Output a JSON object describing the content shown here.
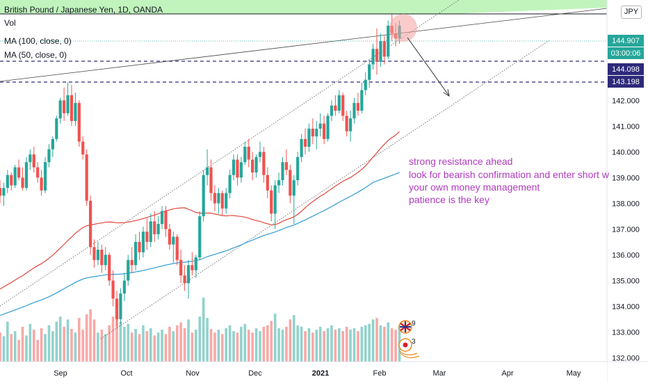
{
  "header": {
    "title": "British Pound / Japanese Yen, 1D, OANDA",
    "indicators": [
      "Vol",
      "MA (100, close, 0)",
      "MA (50, close, 0)"
    ],
    "currency": "JPY"
  },
  "annotation": {
    "lines": [
      "strong resistance ahead",
      "look for bearish confirmation and enter short w",
      "your own money management",
      "patience is the key"
    ],
    "color": "#b03bbf"
  },
  "price_tags": {
    "last": "144.907",
    "countdown": "03:00:06",
    "level1": "144.098",
    "level2": "143.198"
  },
  "event_labels": [
    "9",
    "3"
  ],
  "colors": {
    "up": "#26a69a",
    "down": "#ef5350",
    "ma50": "#e0463c",
    "ma100": "#2e9bd6",
    "level": "#2e2a7a",
    "zone": "#b6f2b0",
    "annotation": "#b03bbf"
  },
  "chart_data": {
    "type": "candlestick",
    "title": "British Pound / Japanese Yen, 1D, OANDA",
    "x_tick_labels": [
      "Sep",
      "Oct",
      "Nov",
      "Dec",
      "2021",
      "Feb",
      "Mar",
      "Apr",
      "May"
    ],
    "y_tick_labels": [
      "132.000",
      "133.000",
      "134.000",
      "135.000",
      "136.000",
      "137.000",
      "138.000",
      "139.000",
      "140.000",
      "141.000",
      "142.000"
    ],
    "ylim": [
      131.85,
      145.9
    ],
    "horizontal_levels": [
      144.098,
      143.198
    ],
    "resistance_zone_from": 145.9,
    "last_price": 144.907,
    "ma50_label": "MA (50, close, 0)",
    "ma100_label": "MA (100, close, 0)",
    "grid": false,
    "candles": [
      [
        138.6,
        138.9,
        138.0,
        138.3
      ],
      [
        138.3,
        138.8,
        137.9,
        138.6
      ],
      [
        138.6,
        139.3,
        138.4,
        139.1
      ],
      [
        139.1,
        139.2,
        138.5,
        138.7
      ],
      [
        138.7,
        139.5,
        138.6,
        139.4
      ],
      [
        139.4,
        139.7,
        138.9,
        139.0
      ],
      [
        139.0,
        139.4,
        138.5,
        138.6
      ],
      [
        138.6,
        139.8,
        138.5,
        139.6
      ],
      [
        139.6,
        140.1,
        139.3,
        139.9
      ],
      [
        139.9,
        140.2,
        139.2,
        139.4
      ],
      [
        139.4,
        139.6,
        138.8,
        139.0
      ],
      [
        139.0,
        139.3,
        138.3,
        138.5
      ],
      [
        138.5,
        139.8,
        138.4,
        139.6
      ],
      [
        139.6,
        140.3,
        139.4,
        140.1
      ],
      [
        140.1,
        140.6,
        139.8,
        140.5
      ],
      [
        140.5,
        141.4,
        140.4,
        141.3
      ],
      [
        141.3,
        142.1,
        141.1,
        142.0
      ],
      [
        142.0,
        142.5,
        141.2,
        141.5
      ],
      [
        141.5,
        142.7,
        141.4,
        142.2
      ],
      [
        142.2,
        142.6,
        141.0,
        141.2
      ],
      [
        141.2,
        142.3,
        141.0,
        141.9
      ],
      [
        141.9,
        142.0,
        140.2,
        140.4
      ],
      [
        140.4,
        140.6,
        139.7,
        139.9
      ],
      [
        139.9,
        140.1,
        137.9,
        138.1
      ],
      [
        138.1,
        138.3,
        136.0,
        136.3
      ],
      [
        136.3,
        136.6,
        135.5,
        135.8
      ],
      [
        135.8,
        136.5,
        135.6,
        136.2
      ],
      [
        136.2,
        136.4,
        135.3,
        135.6
      ],
      [
        135.6,
        136.3,
        135.4,
        136.0
      ],
      [
        136.0,
        136.1,
        134.8,
        135.0
      ],
      [
        135.0,
        135.4,
        134.0,
        134.3
      ],
      [
        134.3,
        134.6,
        133.2,
        133.5
      ],
      [
        133.5,
        134.7,
        133.3,
        134.5
      ],
      [
        134.5,
        135.3,
        134.2,
        135.0
      ],
      [
        135.0,
        136.0,
        134.8,
        135.8
      ],
      [
        135.8,
        136.3,
        135.3,
        135.6
      ],
      [
        135.6,
        136.8,
        135.4,
        136.5
      ],
      [
        136.5,
        136.9,
        135.8,
        136.1
      ],
      [
        136.1,
        137.1,
        135.9,
        136.9
      ],
      [
        136.9,
        137.4,
        136.2,
        136.5
      ],
      [
        136.5,
        137.6,
        136.3,
        137.3
      ],
      [
        137.3,
        137.7,
        136.5,
        136.8
      ],
      [
        136.8,
        137.5,
        136.6,
        137.2
      ],
      [
        137.2,
        137.9,
        137.0,
        137.7
      ],
      [
        137.7,
        137.9,
        136.7,
        137.0
      ],
      [
        137.0,
        137.2,
        136.2,
        136.4
      ],
      [
        136.4,
        136.9,
        135.7,
        136.7
      ],
      [
        136.7,
        136.8,
        135.6,
        135.8
      ],
      [
        135.8,
        136.2,
        134.9,
        135.2
      ],
      [
        135.2,
        135.6,
        134.6,
        134.9
      ],
      [
        134.9,
        135.8,
        134.3,
        135.6
      ],
      [
        135.6,
        136.1,
        135.2,
        135.4
      ],
      [
        135.4,
        136.0,
        135.1,
        135.9
      ],
      [
        135.9,
        137.7,
        135.8,
        137.5
      ],
      [
        137.5,
        139.3,
        137.3,
        139.1
      ],
      [
        139.1,
        140.1,
        138.7,
        139.4
      ],
      [
        139.4,
        139.7,
        138.1,
        138.4
      ],
      [
        138.4,
        138.7,
        137.7,
        138.0
      ],
      [
        138.0,
        138.6,
        137.6,
        138.4
      ],
      [
        138.4,
        138.5,
        137.5,
        137.8
      ],
      [
        137.8,
        138.6,
        137.6,
        138.4
      ],
      [
        138.4,
        139.3,
        138.2,
        139.1
      ],
      [
        139.1,
        139.9,
        138.9,
        139.7
      ],
      [
        139.7,
        139.9,
        138.7,
        139.0
      ],
      [
        139.0,
        139.8,
        138.8,
        139.6
      ],
      [
        139.6,
        140.4,
        139.5,
        140.2
      ],
      [
        140.2,
        140.5,
        139.4,
        139.7
      ],
      [
        139.7,
        140.0,
        138.9,
        139.2
      ],
      [
        139.2,
        139.9,
        139.0,
        139.8
      ],
      [
        139.8,
        140.4,
        139.6,
        140.0
      ],
      [
        140.0,
        140.2,
        138.8,
        139.1
      ],
      [
        139.1,
        139.4,
        138.2,
        138.5
      ],
      [
        138.5,
        138.7,
        137.3,
        137.6
      ],
      [
        137.6,
        138.9,
        137.0,
        138.7
      ],
      [
        138.7,
        139.2,
        138.4,
        138.9
      ],
      [
        138.9,
        139.8,
        138.7,
        139.6
      ],
      [
        139.6,
        140.1,
        139.1,
        139.3
      ],
      [
        139.3,
        139.5,
        138.0,
        138.3
      ],
      [
        138.3,
        139.1,
        137.2,
        138.9
      ],
      [
        138.9,
        140.0,
        138.7,
        139.8
      ],
      [
        139.8,
        140.7,
        139.6,
        140.5
      ],
      [
        140.5,
        140.9,
        139.9,
        140.2
      ],
      [
        140.2,
        141.1,
        140.0,
        140.9
      ],
      [
        140.9,
        141.3,
        140.3,
        140.6
      ],
      [
        140.6,
        141.2,
        140.1,
        140.9
      ],
      [
        140.9,
        141.5,
        140.6,
        141.1
      ],
      [
        141.1,
        141.4,
        140.3,
        140.5
      ],
      [
        140.5,
        141.5,
        140.4,
        141.4
      ],
      [
        141.4,
        142.0,
        141.2,
        141.8
      ],
      [
        141.8,
        142.2,
        141.4,
        141.6
      ],
      [
        141.6,
        142.4,
        141.5,
        142.2
      ],
      [
        142.2,
        142.3,
        141.2,
        141.4
      ],
      [
        141.4,
        141.6,
        140.6,
        140.8
      ],
      [
        140.8,
        141.6,
        140.4,
        141.3
      ],
      [
        141.3,
        142.1,
        141.1,
        141.9
      ],
      [
        141.9,
        142.3,
        141.4,
        141.6
      ],
      [
        141.6,
        142.7,
        141.5,
        142.4
      ],
      [
        142.4,
        143.1,
        142.2,
        142.8
      ],
      [
        142.8,
        143.6,
        142.5,
        143.4
      ],
      [
        143.4,
        144.2,
        143.2,
        144.0
      ],
      [
        144.0,
        144.8,
        143.0,
        143.5
      ],
      [
        143.5,
        144.6,
        143.3,
        144.3
      ],
      [
        144.3,
        144.5,
        143.4,
        143.7
      ],
      [
        143.7,
        145.1,
        143.6,
        144.9
      ],
      [
        144.9,
        145.4,
        144.3,
        144.6
      ],
      [
        144.6,
        145.0,
        144.1,
        144.4
      ],
      [
        144.4,
        145.1,
        144.2,
        144.907
      ]
    ],
    "volume": [
      40,
      35,
      55,
      38,
      42,
      30,
      48,
      36,
      52,
      44,
      30,
      46,
      38,
      50,
      42,
      55,
      62,
      48,
      58,
      45,
      40,
      60,
      44,
      65,
      72,
      58,
      40,
      44,
      38,
      50,
      62,
      70,
      55,
      48,
      52,
      40,
      45,
      38,
      50,
      42,
      46,
      36,
      40,
      44,
      38,
      48,
      42,
      50,
      54,
      46,
      58,
      40,
      44,
      62,
      88,
      60,
      45,
      40,
      44,
      38,
      46,
      50,
      42,
      40,
      48,
      52,
      44,
      40,
      46,
      42,
      48,
      50,
      56,
      66,
      46,
      44,
      48,
      58,
      64,
      50,
      48,
      42,
      46,
      40,
      44,
      48,
      42,
      46,
      50,
      44,
      46,
      42,
      48,
      44,
      46,
      42,
      48,
      50,
      52,
      58,
      60,
      50,
      48,
      54,
      46,
      44,
      50
    ]
  }
}
